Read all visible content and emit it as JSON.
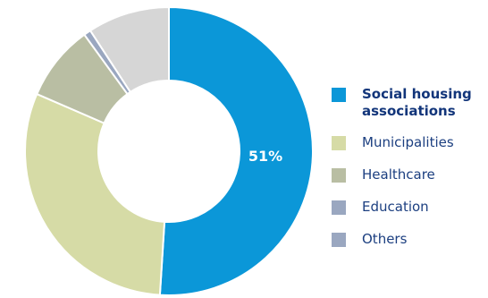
{
  "chart_data": {
    "type": "pie",
    "title": "",
    "categories": [
      "Social housing associations",
      "Municipalities",
      "Healthcare",
      "Education",
      "Others"
    ],
    "values": [
      51,
      30.5,
      8.5,
      0.8,
      9.2
    ],
    "colors": [
      "#0b97d8",
      "#d6dba6",
      "#b9bea3",
      "#9aa7c0",
      "#d6d6d6"
    ],
    "data_labels": [
      "51%"
    ],
    "legend_colors": [
      "#0b97d8",
      "#d6dba6",
      "#b9bea3",
      "#9aa7c0",
      "#9aa7c0"
    ],
    "label_color": "#ffffff"
  }
}
